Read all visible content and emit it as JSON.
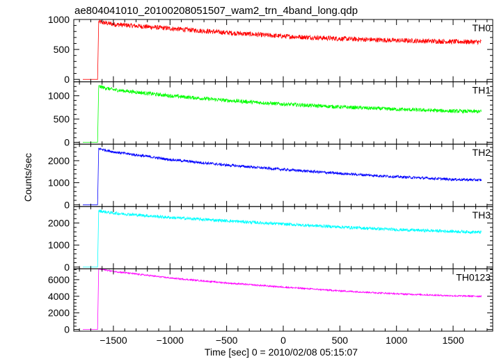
{
  "chart_data": {
    "type": "line",
    "title": "ae804041010_20100208051507_wam2_trn_4band_long.qdp",
    "xlabel": "Time [sec] 0 = 2010/02/08 05:15:07",
    "ylabel": "Counts/sec",
    "xlim": [
      -1850,
      1850
    ],
    "xticks": [
      -1500,
      -1000,
      -500,
      0,
      500,
      1000,
      1500
    ],
    "xtick_labels": [
      "−1500",
      "−1000",
      "−500",
      "0",
      "500",
      "1000",
      "1500"
    ],
    "panels": [
      {
        "name": "TH0",
        "color": "#ff0000",
        "ylim": [
          -40,
          1000
        ],
        "yticks": [
          0,
          500,
          1000
        ],
        "ytick_labels": [
          "0",
          "500",
          "1000"
        ],
        "series": {
          "x": [
            -1770,
            -1640,
            -1630,
            -1500,
            -1000,
            -500,
            0,
            500,
            1000,
            1500,
            1750
          ],
          "y": [
            0,
            0,
            960,
            920,
            850,
            780,
            720,
            680,
            650,
            630,
            625
          ]
        },
        "noise": 40
      },
      {
        "name": "TH1",
        "color": "#00ff00",
        "ylim": [
          -40,
          1300
        ],
        "yticks": [
          0,
          500,
          1000
        ],
        "ytick_labels": [
          "0",
          "500",
          "1000"
        ],
        "series": {
          "x": [
            -1770,
            -1640,
            -1630,
            -1500,
            -1000,
            -500,
            0,
            500,
            1000,
            1500,
            1750
          ],
          "y": [
            0,
            0,
            1200,
            1130,
            1000,
            900,
            820,
            760,
            710,
            670,
            660
          ]
        },
        "noise": 40
      },
      {
        "name": "TH2",
        "color": "#0000ff",
        "ylim": [
          -80,
          2750
        ],
        "yticks": [
          0,
          1000,
          2000
        ],
        "ytick_labels": [
          "0",
          "1000",
          "2000"
        ],
        "series": {
          "x": [
            -1770,
            -1640,
            -1630,
            -1500,
            -1000,
            -500,
            0,
            500,
            1000,
            1500,
            1750
          ],
          "y": [
            0,
            0,
            2550,
            2400,
            2050,
            1800,
            1600,
            1420,
            1270,
            1150,
            1120
          ]
        },
        "noise": 60
      },
      {
        "name": "TH3",
        "color": "#00ffff",
        "ylim": [
          -80,
          2750
        ],
        "yticks": [
          0,
          1000,
          2000
        ],
        "ytick_labels": [
          "0",
          "1000",
          "2000"
        ],
        "series": {
          "x": [
            -1770,
            -1640,
            -1630,
            -1500,
            -1000,
            -500,
            0,
            500,
            1000,
            1500,
            1750
          ],
          "y": [
            0,
            0,
            2550,
            2450,
            2250,
            2100,
            1950,
            1820,
            1700,
            1620,
            1580
          ]
        },
        "noise": 70
      },
      {
        "name": "TH0123",
        "color": "#ff00ff",
        "ylim": [
          -200,
          7300
        ],
        "yticks": [
          0,
          2000,
          4000,
          6000
        ],
        "ytick_labels": [
          "0",
          "2000",
          "4000",
          "6000"
        ],
        "series": {
          "x": [
            -1770,
            -1640,
            -1630,
            -1500,
            -1000,
            -500,
            0,
            500,
            1000,
            1500,
            1750
          ],
          "y": [
            0,
            0,
            7300,
            7000,
            6200,
            5600,
            5100,
            4650,
            4300,
            4050,
            4000
          ]
        },
        "noise": 90
      }
    ]
  }
}
